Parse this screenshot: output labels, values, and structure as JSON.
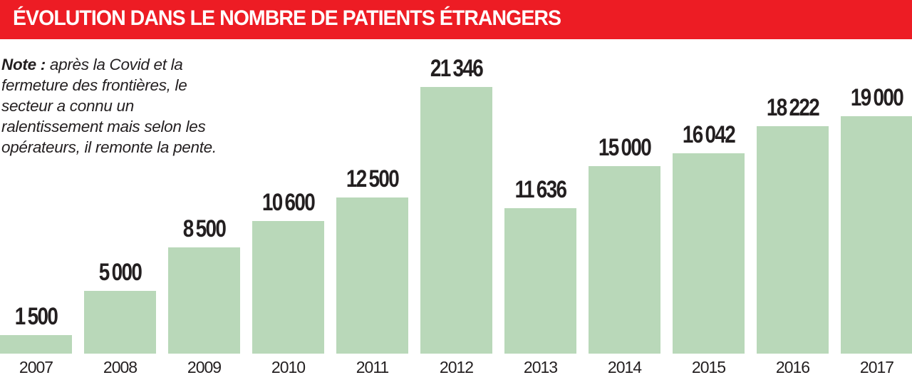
{
  "header": {
    "title": "ÉVOLUTION DANS LE NOMBRE DE PATIENTS ÉTRANGERS",
    "color": "#ed1c24"
  },
  "note": {
    "label": "Note :",
    "text": " après la Covid et la fermeture des frontières, le secteur a connu un ralentissement mais selon les opérateurs, il remonte la pente."
  },
  "chart_data": {
    "type": "bar",
    "title": "ÉVOLUTION DANS LE NOMBRE DE PATIENTS ÉTRANGERS",
    "categories": [
      "2007",
      "2008",
      "2009",
      "2010",
      "2011",
      "2012",
      "2013",
      "2014",
      "2015",
      "2016",
      "2017"
    ],
    "values": [
      1500,
      5000,
      8500,
      10600,
      12500,
      21346,
      11636,
      15000,
      16042,
      18222,
      19000
    ],
    "value_labels": [
      "1500",
      "5000",
      "8500",
      "10600",
      "12500",
      "21346",
      "11636",
      "15000",
      "16042",
      "18222",
      "19000"
    ],
    "xlabel": "",
    "ylabel": "",
    "grid": false,
    "legend": null,
    "bar_color": "#b9d8b9",
    "annotation": "Note : après la Covid et la fermeture des frontières, le secteur a connu un ralentissement mais selon les opérateurs, il remonte la pente."
  }
}
